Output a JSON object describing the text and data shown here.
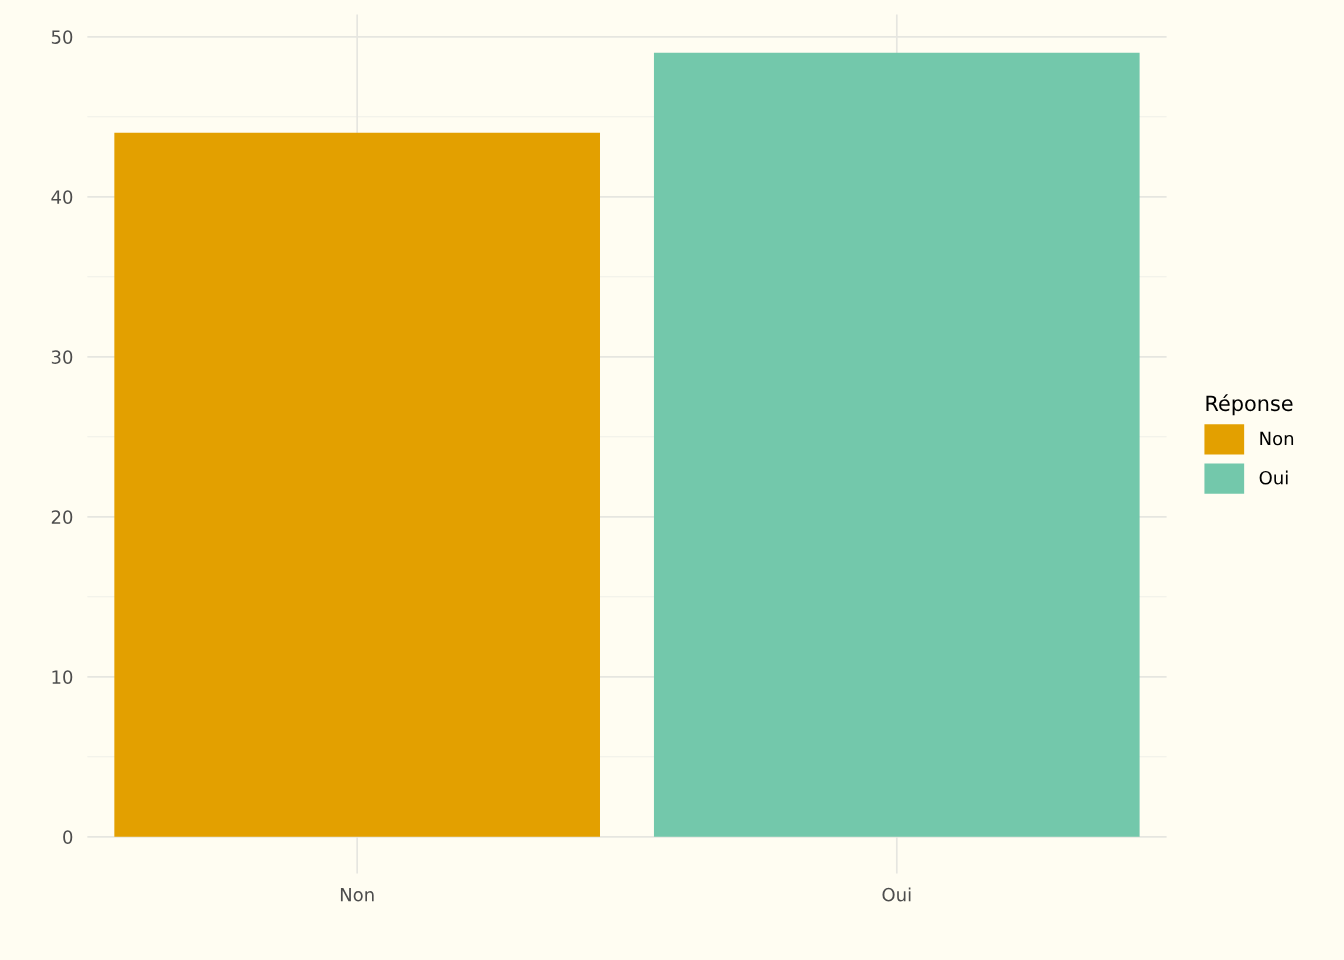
{
  "chart_data": {
    "type": "bar",
    "categories": [
      "Non",
      "Oui"
    ],
    "series": [
      {
        "name": "Non",
        "color": "#e3a000",
        "values": [
          44,
          null
        ]
      },
      {
        "name": "Oui",
        "color": "#73c8ab",
        "values": [
          null,
          49
        ]
      }
    ],
    "ylim": [
      -2.3,
      51.4
    ],
    "yticks": [
      0,
      10,
      20,
      30,
      40,
      50
    ],
    "grid": true,
    "legend": "right",
    "legend_title": "Réponse"
  }
}
